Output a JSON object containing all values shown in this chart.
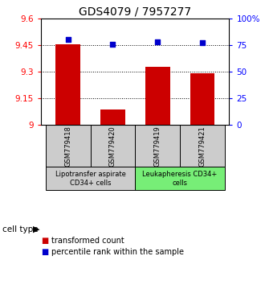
{
  "title": "GDS4079 / 7957277",
  "samples": [
    "GSM779418",
    "GSM779420",
    "GSM779419",
    "GSM779421"
  ],
  "bar_values": [
    9.455,
    9.085,
    9.325,
    9.29
  ],
  "percentile_values": [
    80,
    76,
    78,
    77
  ],
  "ylim_left": [
    9.0,
    9.6
  ],
  "ylim_right": [
    0,
    100
  ],
  "yticks_left": [
    9.0,
    9.15,
    9.3,
    9.45,
    9.6
  ],
  "ytick_labels_left": [
    "9",
    "9.15",
    "9.3",
    "9.45",
    "9.6"
  ],
  "yticks_right": [
    0,
    25,
    50,
    75,
    100
  ],
  "ytick_labels_right": [
    "0",
    "25",
    "50",
    "75",
    "100%"
  ],
  "bar_color": "#cc0000",
  "scatter_color": "#0000cc",
  "bar_width": 0.55,
  "group_configs": [
    {
      "indices": [
        0,
        1
      ],
      "label": "Lipotransfer aspirate\nCD34+ cells",
      "color": "#cccccc"
    },
    {
      "indices": [
        2,
        3
      ],
      "label": "Leukapheresis CD34+\ncells",
      "color": "#77ee77"
    }
  ],
  "cell_type_label": "cell type",
  "legend_bar_label": "transformed count",
  "legend_scatter_label": "percentile rank within the sample",
  "title_fontsize": 10,
  "tick_fontsize": 7.5,
  "sample_fontsize": 6,
  "group_fontsize": 6
}
